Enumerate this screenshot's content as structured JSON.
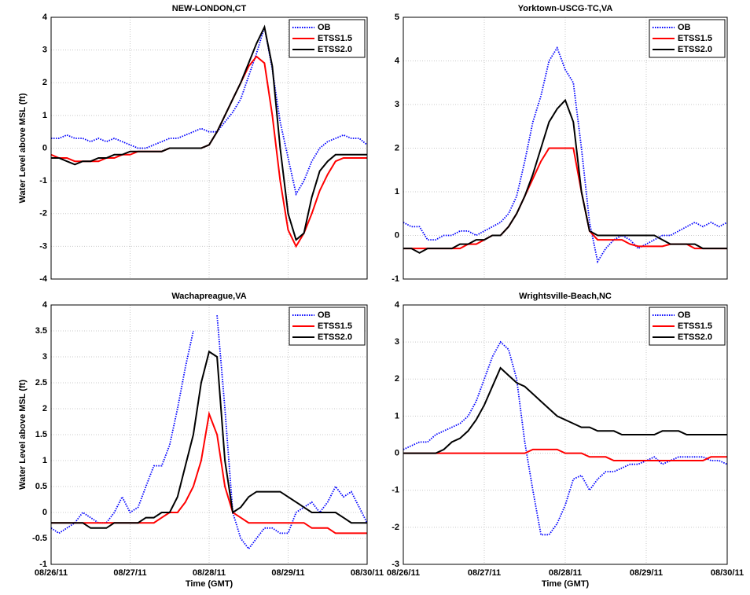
{
  "chart_data": [
    {
      "type": "line",
      "title": "NEW-LONDON,CT",
      "ylabel": "Water Level above MSL (ft)",
      "grid": true,
      "legend": "upper right",
      "x": [
        0,
        0.1,
        0.2,
        0.3,
        0.4,
        0.5,
        0.6,
        0.7,
        0.8,
        0.9,
        1,
        1.1,
        1.2,
        1.3,
        1.4,
        1.5,
        1.6,
        1.7,
        1.8,
        1.9,
        2,
        2.1,
        2.2,
        2.3,
        2.4,
        2.5,
        2.6,
        2.7,
        2.8,
        2.9,
        3,
        3.1,
        3.2,
        3.3,
        3.4,
        3.5,
        3.6,
        3.7,
        3.8,
        3.9,
        4
      ],
      "xlim": [
        0,
        4
      ],
      "xticks": [
        0,
        1,
        2,
        3,
        4
      ],
      "ylim": [
        -4,
        4
      ],
      "yticks": [
        -4,
        -3,
        -2,
        -1,
        0,
        1,
        2,
        3,
        4
      ],
      "series": [
        {
          "name": "OB",
          "color": "#0000ff",
          "dash": "dotted",
          "values": [
            0.3,
            0.3,
            0.4,
            0.3,
            0.3,
            0.2,
            0.3,
            0.2,
            0.3,
            0.2,
            0.1,
            0.0,
            0.0,
            0.1,
            0.2,
            0.3,
            0.3,
            0.4,
            0.5,
            0.6,
            0.5,
            0.5,
            0.8,
            1.1,
            1.5,
            2.2,
            2.9,
            3.7,
            2.4,
            0.8,
            -0.3,
            -1.4,
            -1.0,
            -0.4,
            0.0,
            0.2,
            0.3,
            0.4,
            0.3,
            0.3,
            0.1
          ]
        },
        {
          "name": "ETSS1.5",
          "color": "#ff0000",
          "dash": "solid",
          "values": [
            -0.2,
            -0.3,
            -0.3,
            -0.4,
            -0.4,
            -0.4,
            -0.4,
            -0.3,
            -0.3,
            -0.2,
            -0.2,
            -0.1,
            -0.1,
            -0.1,
            -0.1,
            0.0,
            0.0,
            0.0,
            0.0,
            0.0,
            0.1,
            0.5,
            1.0,
            1.5,
            2.0,
            2.5,
            2.8,
            2.6,
            1.0,
            -1.0,
            -2.5,
            -3.0,
            -2.6,
            -2.0,
            -1.3,
            -0.8,
            -0.4,
            -0.3,
            -0.3,
            -0.3,
            -0.3
          ]
        },
        {
          "name": "ETSS2.0",
          "color": "#000000",
          "dash": "solid",
          "values": [
            -0.3,
            -0.3,
            -0.4,
            -0.5,
            -0.4,
            -0.4,
            -0.3,
            -0.3,
            -0.2,
            -0.2,
            -0.1,
            -0.1,
            -0.1,
            -0.1,
            -0.1,
            0.0,
            0.0,
            0.0,
            0.0,
            0.0,
            0.1,
            0.5,
            1.0,
            1.5,
            2.0,
            2.6,
            3.2,
            3.7,
            2.5,
            0.0,
            -2.0,
            -2.8,
            -2.6,
            -1.5,
            -0.7,
            -0.4,
            -0.2,
            -0.2,
            -0.2,
            -0.2,
            -0.2
          ]
        }
      ]
    },
    {
      "type": "line",
      "title": "Yorktown-USCG-TC,VA",
      "grid": true,
      "legend": "upper right",
      "x": [
        0,
        0.1,
        0.2,
        0.3,
        0.4,
        0.5,
        0.6,
        0.7,
        0.8,
        0.9,
        1,
        1.1,
        1.2,
        1.3,
        1.4,
        1.5,
        1.6,
        1.7,
        1.8,
        1.9,
        2,
        2.1,
        2.2,
        2.3,
        2.4,
        2.5,
        2.6,
        2.7,
        2.8,
        2.9,
        3,
        3.1,
        3.2,
        3.3,
        3.4,
        3.5,
        3.6,
        3.7,
        3.8,
        3.9,
        4
      ],
      "xlim": [
        0,
        4
      ],
      "xticks": [
        0,
        1,
        2,
        3,
        4
      ],
      "ylim": [
        -1,
        5
      ],
      "yticks": [
        -1,
        0,
        1,
        2,
        3,
        4,
        5
      ],
      "series": [
        {
          "name": "OB",
          "color": "#0000ff",
          "dash": "dotted",
          "values": [
            0.3,
            0.2,
            0.2,
            -0.1,
            -0.1,
            0.0,
            0.0,
            0.1,
            0.1,
            0.0,
            0.1,
            0.2,
            0.3,
            0.5,
            0.9,
            1.7,
            2.6,
            3.2,
            4.0,
            4.3,
            3.8,
            3.5,
            2.0,
            0.3,
            -0.6,
            -0.3,
            -0.1,
            0.0,
            -0.1,
            -0.3,
            -0.2,
            -0.1,
            0.0,
            0.0,
            0.1,
            0.2,
            0.3,
            0.2,
            0.3,
            0.2,
            0.3
          ]
        },
        {
          "name": "ETSS1.5",
          "color": "#ff0000",
          "dash": "solid",
          "values": [
            -0.3,
            -0.3,
            -0.3,
            -0.3,
            -0.3,
            -0.3,
            -0.3,
            -0.3,
            -0.2,
            -0.2,
            -0.1,
            0.0,
            0.0,
            0.2,
            0.5,
            0.9,
            1.3,
            1.7,
            2.0,
            2.0,
            2.0,
            2.0,
            1.0,
            0.1,
            -0.1,
            -0.1,
            -0.1,
            -0.1,
            -0.2,
            -0.25,
            -0.25,
            -0.25,
            -0.25,
            -0.2,
            -0.2,
            -0.2,
            -0.3,
            -0.3,
            -0.3,
            -0.3,
            -0.3
          ]
        },
        {
          "name": "ETSS2.0",
          "color": "#000000",
          "dash": "solid",
          "values": [
            -0.3,
            -0.3,
            -0.4,
            -0.3,
            -0.3,
            -0.3,
            -0.3,
            -0.2,
            -0.2,
            -0.1,
            -0.1,
            0.0,
            0.0,
            0.2,
            0.5,
            0.9,
            1.4,
            2.0,
            2.6,
            2.9,
            3.1,
            2.6,
            1.0,
            0.1,
            0.0,
            0.0,
            0.0,
            0.0,
            0.0,
            0.0,
            0.0,
            0.0,
            -0.1,
            -0.2,
            -0.2,
            -0.2,
            -0.2,
            -0.3,
            -0.3,
            -0.3,
            -0.3
          ]
        }
      ]
    },
    {
      "type": "line",
      "title": "Wachapreague,VA",
      "ylabel": "Water Level above MSL (ft)",
      "xlabel": "Time (GMT)",
      "grid": true,
      "legend": "upper right",
      "x": [
        0,
        0.1,
        0.2,
        0.3,
        0.4,
        0.5,
        0.6,
        0.7,
        0.8,
        0.9,
        1,
        1.1,
        1.2,
        1.3,
        1.4,
        1.5,
        1.6,
        1.7,
        1.8,
        1.9,
        2,
        2.1,
        2.2,
        2.3,
        2.4,
        2.5,
        2.6,
        2.7,
        2.8,
        2.9,
        3,
        3.1,
        3.2,
        3.3,
        3.4,
        3.5,
        3.6,
        3.7,
        3.8,
        3.9,
        4
      ],
      "xlim": [
        0,
        4
      ],
      "xticks": [
        {
          "value": 0,
          "label": "08/26/11"
        },
        {
          "value": 1,
          "label": "08/27/11"
        },
        {
          "value": 2,
          "label": "08/28/11"
        },
        {
          "value": 3,
          "label": "08/29/11"
        },
        {
          "value": 4,
          "label": "08/30/11"
        }
      ],
      "ylim": [
        -1,
        4
      ],
      "yticks": [
        -1,
        -0.5,
        0,
        0.5,
        1,
        1.5,
        2,
        2.5,
        3,
        3.5,
        4
      ],
      "series": [
        {
          "name": "OB",
          "color": "#0000ff",
          "dash": "dotted",
          "values": [
            -0.3,
            -0.4,
            -0.3,
            -0.2,
            0.0,
            -0.1,
            -0.2,
            -0.2,
            0.0,
            0.3,
            0.0,
            0.1,
            0.5,
            0.9,
            0.9,
            1.3,
            2.0,
            2.8,
            3.5,
            null,
            null,
            3.8,
            2.0,
            0.0,
            -0.5,
            -0.7,
            -0.5,
            -0.3,
            -0.3,
            -0.4,
            -0.4,
            0.0,
            0.1,
            0.2,
            0.0,
            0.2,
            0.5,
            0.3,
            0.4,
            0.1,
            -0.2
          ]
        },
        {
          "name": "ETSS1.5",
          "color": "#ff0000",
          "dash": "solid",
          "values": [
            -0.2,
            -0.2,
            -0.2,
            -0.2,
            -0.2,
            -0.2,
            -0.2,
            -0.2,
            -0.2,
            -0.2,
            -0.2,
            -0.2,
            -0.2,
            -0.2,
            -0.1,
            0.0,
            0.0,
            0.2,
            0.5,
            1.0,
            1.9,
            1.5,
            0.5,
            0.0,
            -0.1,
            -0.2,
            -0.2,
            -0.2,
            -0.2,
            -0.2,
            -0.2,
            -0.2,
            -0.2,
            -0.3,
            -0.3,
            -0.3,
            -0.4,
            -0.4,
            -0.4,
            -0.4,
            -0.4
          ]
        },
        {
          "name": "ETSS2.0",
          "color": "#000000",
          "dash": "solid",
          "values": [
            -0.2,
            -0.2,
            -0.2,
            -0.2,
            -0.2,
            -0.3,
            -0.3,
            -0.3,
            -0.2,
            -0.2,
            -0.2,
            -0.2,
            -0.1,
            -0.1,
            0.0,
            0.0,
            0.3,
            0.9,
            1.5,
            2.5,
            3.1,
            3.0,
            1.0,
            0.0,
            0.1,
            0.3,
            0.4,
            0.4,
            0.4,
            0.4,
            0.3,
            0.2,
            0.1,
            0.0,
            0.0,
            0.0,
            0.0,
            -0.1,
            -0.2,
            -0.2,
            -0.2
          ]
        }
      ]
    },
    {
      "type": "line",
      "title": "Wrightsville-Beach,NC",
      "xlabel": "Time (GMT)",
      "grid": true,
      "legend": "upper right",
      "x": [
        0,
        0.1,
        0.2,
        0.3,
        0.4,
        0.5,
        0.6,
        0.7,
        0.8,
        0.9,
        1,
        1.1,
        1.2,
        1.3,
        1.4,
        1.5,
        1.6,
        1.7,
        1.8,
        1.9,
        2,
        2.1,
        2.2,
        2.3,
        2.4,
        2.5,
        2.6,
        2.7,
        2.8,
        2.9,
        3,
        3.1,
        3.2,
        3.3,
        3.4,
        3.5,
        3.6,
        3.7,
        3.8,
        3.9,
        4
      ],
      "xlim": [
        0,
        4
      ],
      "xticks": [
        {
          "value": 0,
          "label": "08/26/11"
        },
        {
          "value": 1,
          "label": "08/27/11"
        },
        {
          "value": 2,
          "label": "08/28/11"
        },
        {
          "value": 3,
          "label": "08/29/11"
        },
        {
          "value": 4,
          "label": "08/30/11"
        }
      ],
      "ylim": [
        -3,
        4
      ],
      "yticks": [
        -3,
        -2,
        -1,
        0,
        1,
        2,
        3,
        4
      ],
      "series": [
        {
          "name": "OB",
          "color": "#0000ff",
          "dash": "dotted",
          "values": [
            0.1,
            0.2,
            0.3,
            0.3,
            0.5,
            0.6,
            0.7,
            0.8,
            1.0,
            1.4,
            2.0,
            2.6,
            3.0,
            2.8,
            2.0,
            0.3,
            -1.0,
            -2.2,
            -2.2,
            -1.9,
            -1.4,
            -0.7,
            -0.6,
            -1.0,
            -0.7,
            -0.5,
            -0.5,
            -0.4,
            -0.3,
            -0.3,
            -0.2,
            -0.1,
            -0.3,
            -0.2,
            -0.1,
            -0.1,
            -0.1,
            -0.1,
            -0.2,
            -0.2,
            -0.3
          ]
        },
        {
          "name": "ETSS1.5",
          "color": "#ff0000",
          "dash": "solid",
          "values": [
            0,
            0,
            0,
            0,
            0,
            0,
            0,
            0,
            0,
            0,
            0,
            0,
            0,
            0,
            0,
            0,
            0.1,
            0.1,
            0.1,
            0.1,
            0.0,
            0.0,
            0.0,
            -0.1,
            -0.1,
            -0.1,
            -0.2,
            -0.2,
            -0.2,
            -0.2,
            -0.2,
            -0.2,
            -0.2,
            -0.2,
            -0.2,
            -0.2,
            -0.2,
            -0.2,
            -0.1,
            -0.1,
            -0.1
          ]
        },
        {
          "name": "ETSS2.0",
          "color": "#000000",
          "dash": "solid",
          "values": [
            0,
            0,
            0,
            0,
            0,
            0.1,
            0.3,
            0.4,
            0.6,
            0.9,
            1.3,
            1.8,
            2.3,
            2.1,
            1.9,
            1.8,
            1.6,
            1.4,
            1.2,
            1.0,
            0.9,
            0.8,
            0.7,
            0.7,
            0.6,
            0.6,
            0.6,
            0.5,
            0.5,
            0.5,
            0.5,
            0.5,
            0.6,
            0.6,
            0.6,
            0.5,
            0.5,
            0.5,
            0.5,
            0.5,
            0.5
          ]
        }
      ]
    }
  ]
}
